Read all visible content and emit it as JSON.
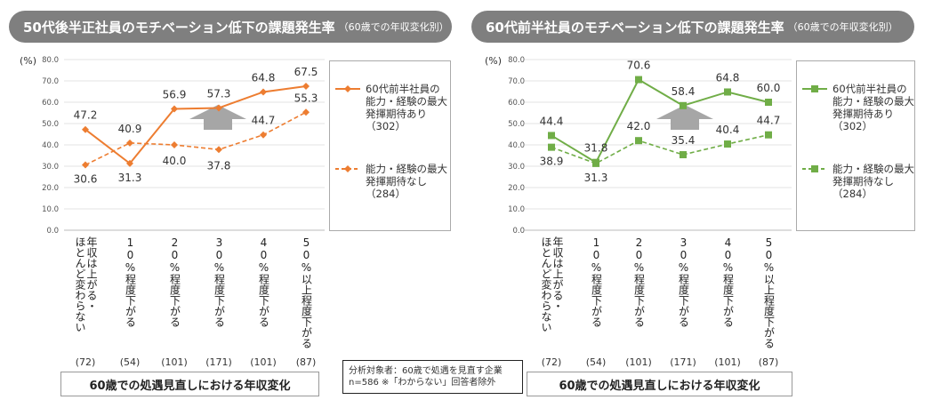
{
  "note": "分析対象者：60歳で処遇を見直す企業\nn=586 ※「わからない」回答者除外",
  "chart_data": [
    {
      "type": "line",
      "title": "50代後半正社員のモチベーション低下の課題発生率",
      "subtitle": "（60歳での年収変化別）",
      "ylabel": "(%)",
      "xlabel": "60歳での処遇見直しにおける年収変化",
      "ylim": [
        0,
        80
      ],
      "yticks": [
        "0.0",
        "10.0",
        "20.0",
        "30.0",
        "40.0",
        "50.0",
        "60.0",
        "70.0",
        "80.0"
      ],
      "categories": [
        "年収は上がる・\nほとんど変わらない",
        "10%程度下がる",
        "20%程度下がる",
        "30%程度下がる",
        "40%程度下がる",
        "50%以上程度下がる"
      ],
      "counts": [
        "(72)",
        "(54)",
        "(101)",
        "(171)",
        "(101)",
        "(87)"
      ],
      "color": "#ed7d31",
      "marker": "diamond",
      "grid": true,
      "legend_position": "right",
      "series": [
        {
          "name": "60代前半社員の\n能力・経験の最大\n発揮期待あり\n（302）",
          "style": "solid",
          "values": [
            47.2,
            31.3,
            56.9,
            57.3,
            64.8,
            67.5
          ]
        },
        {
          "name": "能力・経験の最大\n発揮期待なし\n（284）",
          "style": "dashed",
          "values": [
            30.6,
            40.9,
            40.0,
            37.8,
            44.7,
            55.3
          ]
        }
      ]
    },
    {
      "type": "line",
      "title": "60代前半社員のモチベーション低下の課題発生率",
      "subtitle": "（60歳での年収変化別）",
      "ylabel": "(%)",
      "xlabel": "60歳での処遇見直しにおける年収変化",
      "ylim": [
        0,
        80
      ],
      "yticks": [
        "0.0",
        "10.0",
        "20.0",
        "30.0",
        "40.0",
        "50.0",
        "60.0",
        "70.0",
        "80.0"
      ],
      "categories": [
        "年収は上がる・\nほとんど変わらない",
        "10%程度下がる",
        "20%程度下がる",
        "30%程度下がる",
        "40%程度下がる",
        "50%以上程度下がる"
      ],
      "counts": [
        "(72)",
        "(54)",
        "(101)",
        "(171)",
        "(101)",
        "(87)"
      ],
      "color": "#70ad47",
      "marker": "square",
      "grid": true,
      "legend_position": "right",
      "series": [
        {
          "name": "60代前半社員の\n能力・経験の最大\n発揮期待あり\n（302）",
          "style": "solid",
          "values": [
            44.4,
            31.8,
            70.6,
            58.4,
            64.8,
            60.0
          ]
        },
        {
          "name": "能力・経験の最大\n発揮期待なし\n（284）",
          "style": "dashed",
          "values": [
            38.9,
            31.3,
            42.0,
            35.4,
            40.4,
            44.7
          ]
        }
      ]
    }
  ]
}
